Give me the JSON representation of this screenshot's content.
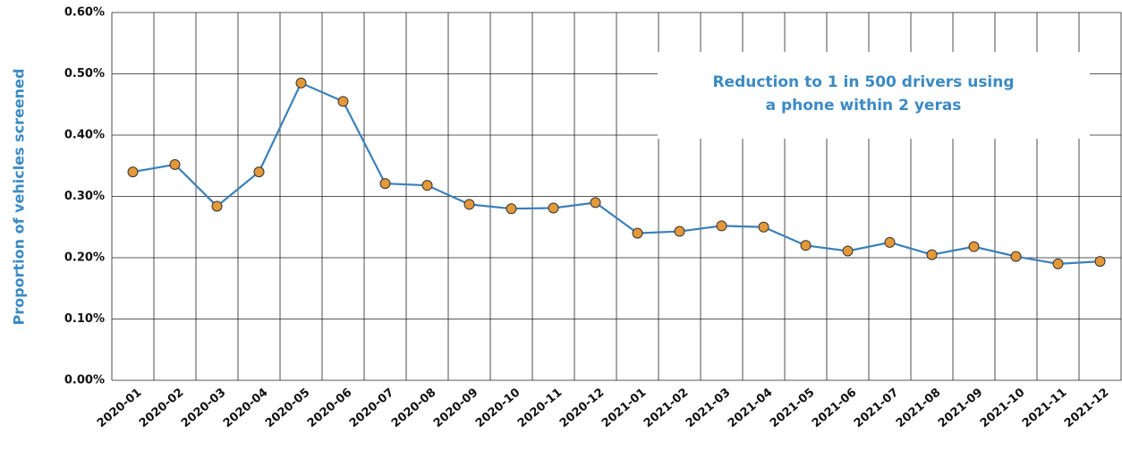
{
  "chart_data": {
    "type": "line",
    "y_label": "Proportion of vehicles screened",
    "annotation": [
      "Reduction to 1 in 500 drivers using",
      "a phone within 2 yeras"
    ],
    "categories": [
      "2020-01",
      "2020-02",
      "2020-03",
      "2020-04",
      "2020-05",
      "2020-06",
      "2020-07",
      "2020-08",
      "2020-09",
      "2020-10",
      "2020-11",
      "2020-12",
      "2021-01",
      "2021-02",
      "2021-03",
      "2021-04",
      "2021-05",
      "2021-06",
      "2021-07",
      "2021-08",
      "2021-09",
      "2021-10",
      "2021-11",
      "2021-12"
    ],
    "series": [
      {
        "color": "#3b80b9",
        "marker_color": "#e3983a",
        "values": [
          0.34,
          0.352,
          0.284,
          0.34,
          0.485,
          0.455,
          0.321,
          0.318,
          0.287,
          0.28,
          0.281,
          0.29,
          0.24,
          0.243,
          0.252,
          0.25,
          0.22,
          0.211,
          0.225,
          0.205,
          0.218,
          0.202,
          0.19,
          0.194
        ]
      }
    ],
    "ylim": [
      0,
      0.6
    ],
    "yticks": [
      {
        "value": 0,
        "label": "0.00%"
      },
      {
        "value": 0.1,
        "label": "0.10%"
      },
      {
        "value": 0.2,
        "label": "0.20%"
      },
      {
        "value": 0.3,
        "label": "0.30%"
      },
      {
        "value": 0.4,
        "label": "0.40%"
      },
      {
        "value": 0.5,
        "label": "0.50%"
      },
      {
        "value": 0.6,
        "label": "0.60%"
      }
    ],
    "grid": true
  }
}
